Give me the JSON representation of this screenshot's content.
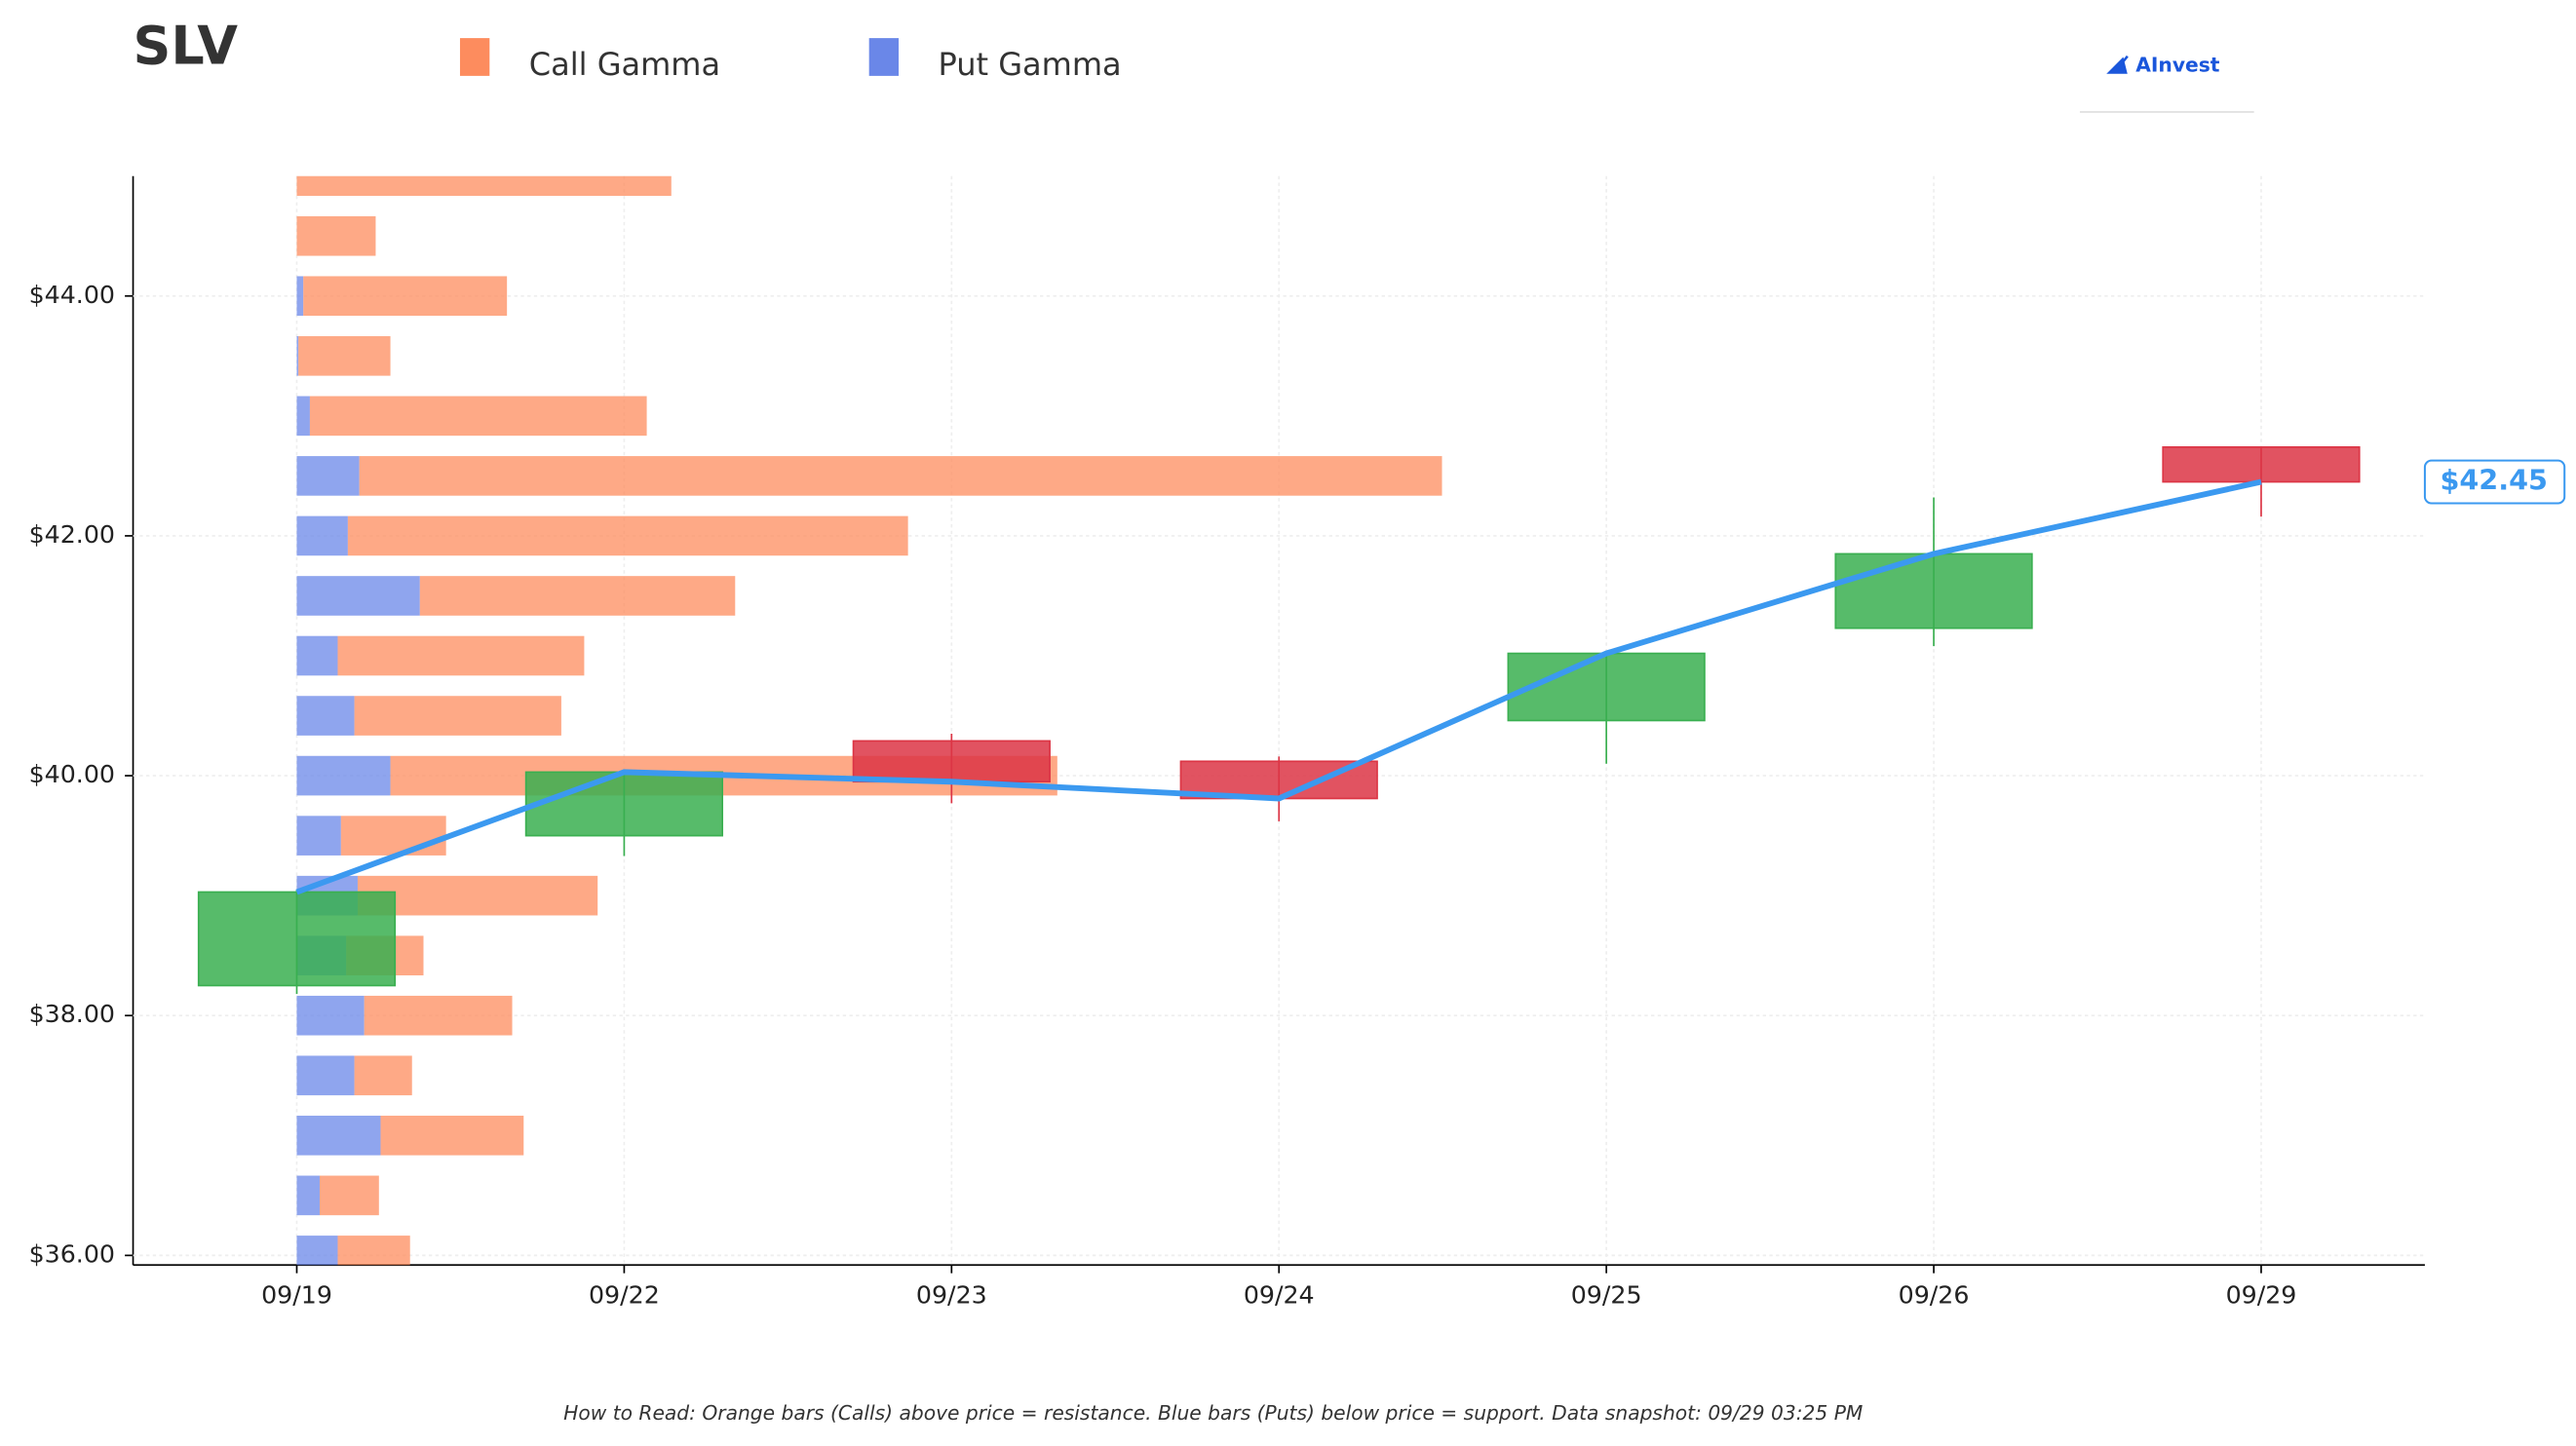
{
  "chart_data": {
    "type": "candlestick",
    "title": "SLV",
    "logo": "AInvest",
    "categories": [
      "09/19",
      "09/22",
      "09/23",
      "09/24",
      "09/25",
      "09/26",
      "09/29"
    ],
    "open": [
      38.25,
      39.5,
      40.29,
      40.12,
      40.46,
      41.23,
      42.74
    ],
    "high": [
      39.05,
      40.05,
      40.35,
      40.16,
      41.03,
      42.32,
      42.74
    ],
    "low": [
      38.18,
      39.33,
      39.77,
      39.62,
      40.1,
      41.08,
      42.16
    ],
    "close": [
      39.03,
      40.03,
      39.95,
      39.81,
      41.02,
      41.85,
      42.45
    ],
    "up_color": "#3aaf50",
    "down_color": "#dc3545",
    "line_color": "#3b99f0",
    "last_price_label": "$42.45",
    "ylim": [
      35.92,
      45.0
    ],
    "yticks": [
      {
        "value": 36,
        "label": "$36.00"
      },
      {
        "value": 38,
        "label": "$38.00"
      },
      {
        "value": 40,
        "label": "$40.00"
      },
      {
        "value": 42,
        "label": "$42.00"
      },
      {
        "value": 44,
        "label": "$44.00"
      }
    ],
    "grid": true,
    "gamma": {
      "strikes": [
        45,
        44.5,
        44,
        43.5,
        43,
        42.5,
        42,
        41.5,
        41,
        40.5,
        40,
        39.5,
        39,
        38.5,
        38,
        37.5,
        37,
        36.5,
        36
      ],
      "series": [
        {
          "name": "Call Gamma",
          "color": "#fd8c5e",
          "values": [
            1.144,
            0.241,
            0.622,
            0.281,
            1.029,
            3.307,
            1.711,
            0.963,
            0.753,
            0.632,
            2.037,
            0.321,
            0.733,
            0.236,
            0.452,
            0.176,
            0.437,
            0.181,
            0.221
          ]
        },
        {
          "name": "Put Gamma",
          "color": "#6a87e8",
          "values": [
            0,
            0,
            0.02,
            0.005,
            0.04,
            0.191,
            0.156,
            0.376,
            0.125,
            0.176,
            0.286,
            0.135,
            0.186,
            0.151,
            0.206,
            0.176,
            0.256,
            0.07,
            0.125
          ]
        }
      ]
    },
    "footnote": "How to Read: Orange bars (Calls) above price = resistance. Blue bars (Puts) below price = support. Data snapshot: 09/29 03:25 PM"
  }
}
